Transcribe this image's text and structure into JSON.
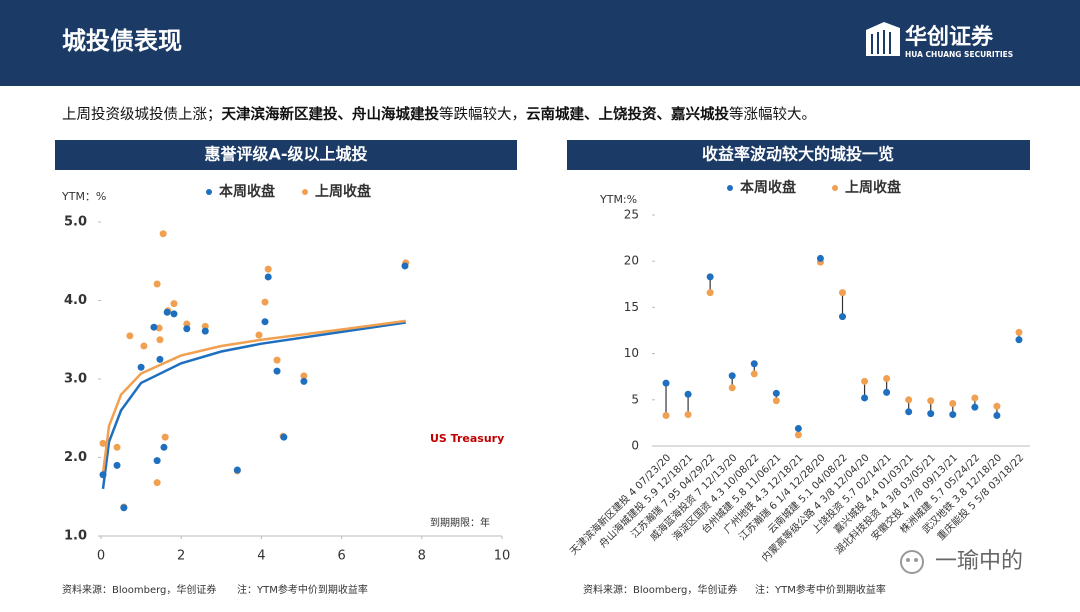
{
  "header": {
    "title": "城投债表现",
    "logo": "华创证券",
    "logo_sub": "HUA CHUANG SECURITIES"
  },
  "summary": [
    {
      "text": "上周投资级城投债上涨；",
      "bold": false
    },
    {
      "text": "天津滨海新区建投、舟山海城建投",
      "bold": true
    },
    {
      "text": "等跌幅较大，",
      "bold": false
    },
    {
      "text": "云南城建、上饶投资、嘉兴城投",
      "bold": true
    },
    {
      "text": "等涨幅较大。",
      "bold": false
    }
  ],
  "chart_data": [
    {
      "type": "scatter",
      "title": "惠誉评级A-级以上城投",
      "y_label": "YTM：%",
      "x_label": "到期期限：年",
      "annotation": "US Treasury",
      "annotation_color": "#c00000",
      "xlim": [
        0,
        10
      ],
      "xticks": [
        0,
        2,
        4,
        6,
        8,
        10
      ],
      "ylim": [
        1,
        5
      ],
      "yticks": [
        {
          "value": 1,
          "label": "1.0"
        },
        {
          "value": 2,
          "label": "2.0"
        },
        {
          "value": 3,
          "label": "3.0"
        },
        {
          "value": 4,
          "label": "4.0"
        },
        {
          "value": 5,
          "label": "5.0"
        }
      ],
      "series": [
        {
          "name": "本周收盘",
          "color": "#1f6fbf",
          "x": [
            0.05,
            0.4,
            0.57,
            1.0,
            1.32,
            1.4,
            1.47,
            1.57,
            1.65,
            1.82,
            2.14,
            2.6,
            3.4,
            4.09,
            4.17,
            4.39,
            4.56,
            5.06,
            7.58
          ],
          "values": [
            1.78,
            1.9,
            1.36,
            3.15,
            3.66,
            1.96,
            3.25,
            2.13,
            3.85,
            3.83,
            3.64,
            3.61,
            1.84,
            3.73,
            4.3,
            3.1,
            2.26,
            2.97,
            4.44
          ]
        },
        {
          "name": "上周收盘",
          "color": "#f0a050",
          "x": [
            0.05,
            0.4,
            0.57,
            0.72,
            1.07,
            1.4,
            1.4,
            1.45,
            1.47,
            1.55,
            1.6,
            1.67,
            1.82,
            2.14,
            2.6,
            3.4,
            3.94,
            4.09,
            4.17,
            4.39,
            4.54,
            5.06,
            7.6
          ],
          "values": [
            2.18,
            2.13,
            1.37,
            3.55,
            3.42,
            4.21,
            1.68,
            3.65,
            3.5,
            4.85,
            2.26,
            3.87,
            3.96,
            3.7,
            3.67,
            1.83,
            3.56,
            3.98,
            4.4,
            3.24,
            2.27,
            3.04,
            4.48
          ]
        }
      ],
      "curves": [
        {
          "color": "#1f6fbf",
          "x": [
            0.05,
            0.2,
            0.5,
            1,
            2,
            3,
            4,
            6,
            7.6
          ],
          "values": [
            1.6,
            2.2,
            2.6,
            2.95,
            3.2,
            3.35,
            3.45,
            3.6,
            3.72
          ]
        },
        {
          "color": "#f0a050",
          "x": [
            0.05,
            0.2,
            0.5,
            1,
            2,
            3,
            4,
            6,
            7.6
          ],
          "values": [
            1.8,
            2.4,
            2.8,
            3.07,
            3.3,
            3.42,
            3.5,
            3.63,
            3.74
          ]
        }
      ],
      "source": "资料来源：Bloomberg，华创证券",
      "note": "注：YTM参考中价到期收益率"
    },
    {
      "type": "dumbbell",
      "title": "收益率波动较大的城投一览",
      "y_label": "YTM:%",
      "ylim": [
        0,
        25
      ],
      "yticks": [
        0,
        5,
        10,
        15,
        20,
        25
      ],
      "categories": [
        "天津滨海新区建投 4 07/23/20",
        "舟山海城建投 5.9 12/18/21",
        "江苏瀚瑞 7.95 04/29/22",
        "威海蓝海投资 7 12/13/20",
        "海淀区国资 4.3 10/08/22",
        "台州城建 5.8 11/06/21",
        "广州地铁 4.3 12/18/21",
        "江苏瀚瑞 6 1/4 12/28/20",
        "云南城建 5.1 04/08/22",
        "内蒙高等级公路 4 3/8 12/04/20",
        "上饶投资 5.7 02/14/21",
        "嘉兴城投 4.4 01/03/21",
        "湖北科技投资 4 3/8 03/05/21",
        "安徽交投 4 7/8 09/13/21",
        "株洲城建 5.7 05/24/22",
        "武汉地铁 3.8 12/18/20",
        "重庆能投 5 5/8 03/18/22"
      ],
      "series": [
        {
          "name": "本周收盘",
          "color": "#1f6fbf",
          "values": [
            6.8,
            5.6,
            18.3,
            7.6,
            8.9,
            5.7,
            1.9,
            20.3,
            14.0,
            5.2,
            5.8,
            3.7,
            3.5,
            3.4,
            4.2,
            3.3,
            11.5
          ]
        },
        {
          "name": "上周收盘",
          "color": "#f0a050",
          "values": [
            3.3,
            3.4,
            16.6,
            6.3,
            7.8,
            4.9,
            1.2,
            19.9,
            16.6,
            7.0,
            7.3,
            5.0,
            4.9,
            4.6,
            5.2,
            4.3,
            12.3
          ]
        }
      ],
      "source": "资料来源：Bloomberg，华创证券",
      "note": "注：YTM参考中价到期收益率"
    }
  ],
  "watermark": "一瑜中的"
}
